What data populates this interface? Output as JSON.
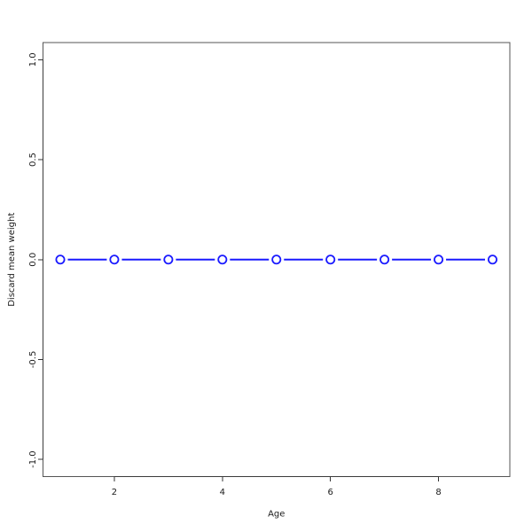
{
  "page": {
    "background": "#ffffff"
  },
  "chart_data": {
    "type": "line",
    "title": "",
    "xlabel": "Age",
    "ylabel": "Discard mean weight",
    "x": [
      1,
      2,
      3,
      4,
      5,
      6,
      7,
      8,
      9
    ],
    "series": [
      {
        "name": "Discard mean weight",
        "values": [
          0.0,
          0.0,
          0.0,
          0.0,
          0.0,
          0.0,
          0.0,
          0.0,
          0.0
        ]
      }
    ],
    "xlim": [
      0.68,
      9.32
    ],
    "ylim": [
      -1.086,
      1.086
    ],
    "x_ticks": {
      "values": [
        2,
        4,
        6,
        8
      ],
      "labels": [
        "2",
        "4",
        "6",
        "8"
      ]
    },
    "y_ticks": {
      "values": [
        -1.0,
        -0.5,
        0.0,
        0.5,
        1.0
      ],
      "labels": [
        "-1.0",
        "-0.5",
        "0.0",
        "0.5",
        "1.0"
      ]
    },
    "grid": false,
    "legend_position": "none",
    "marker": "open-circle",
    "line_style": "points-and-segments",
    "colors": {
      "line": "#1a1aff",
      "marker_fill": "#ffffff",
      "box": "#555555",
      "axis": "#3c3c3c",
      "tick": "#333333",
      "text": "#1a1a1a"
    }
  }
}
